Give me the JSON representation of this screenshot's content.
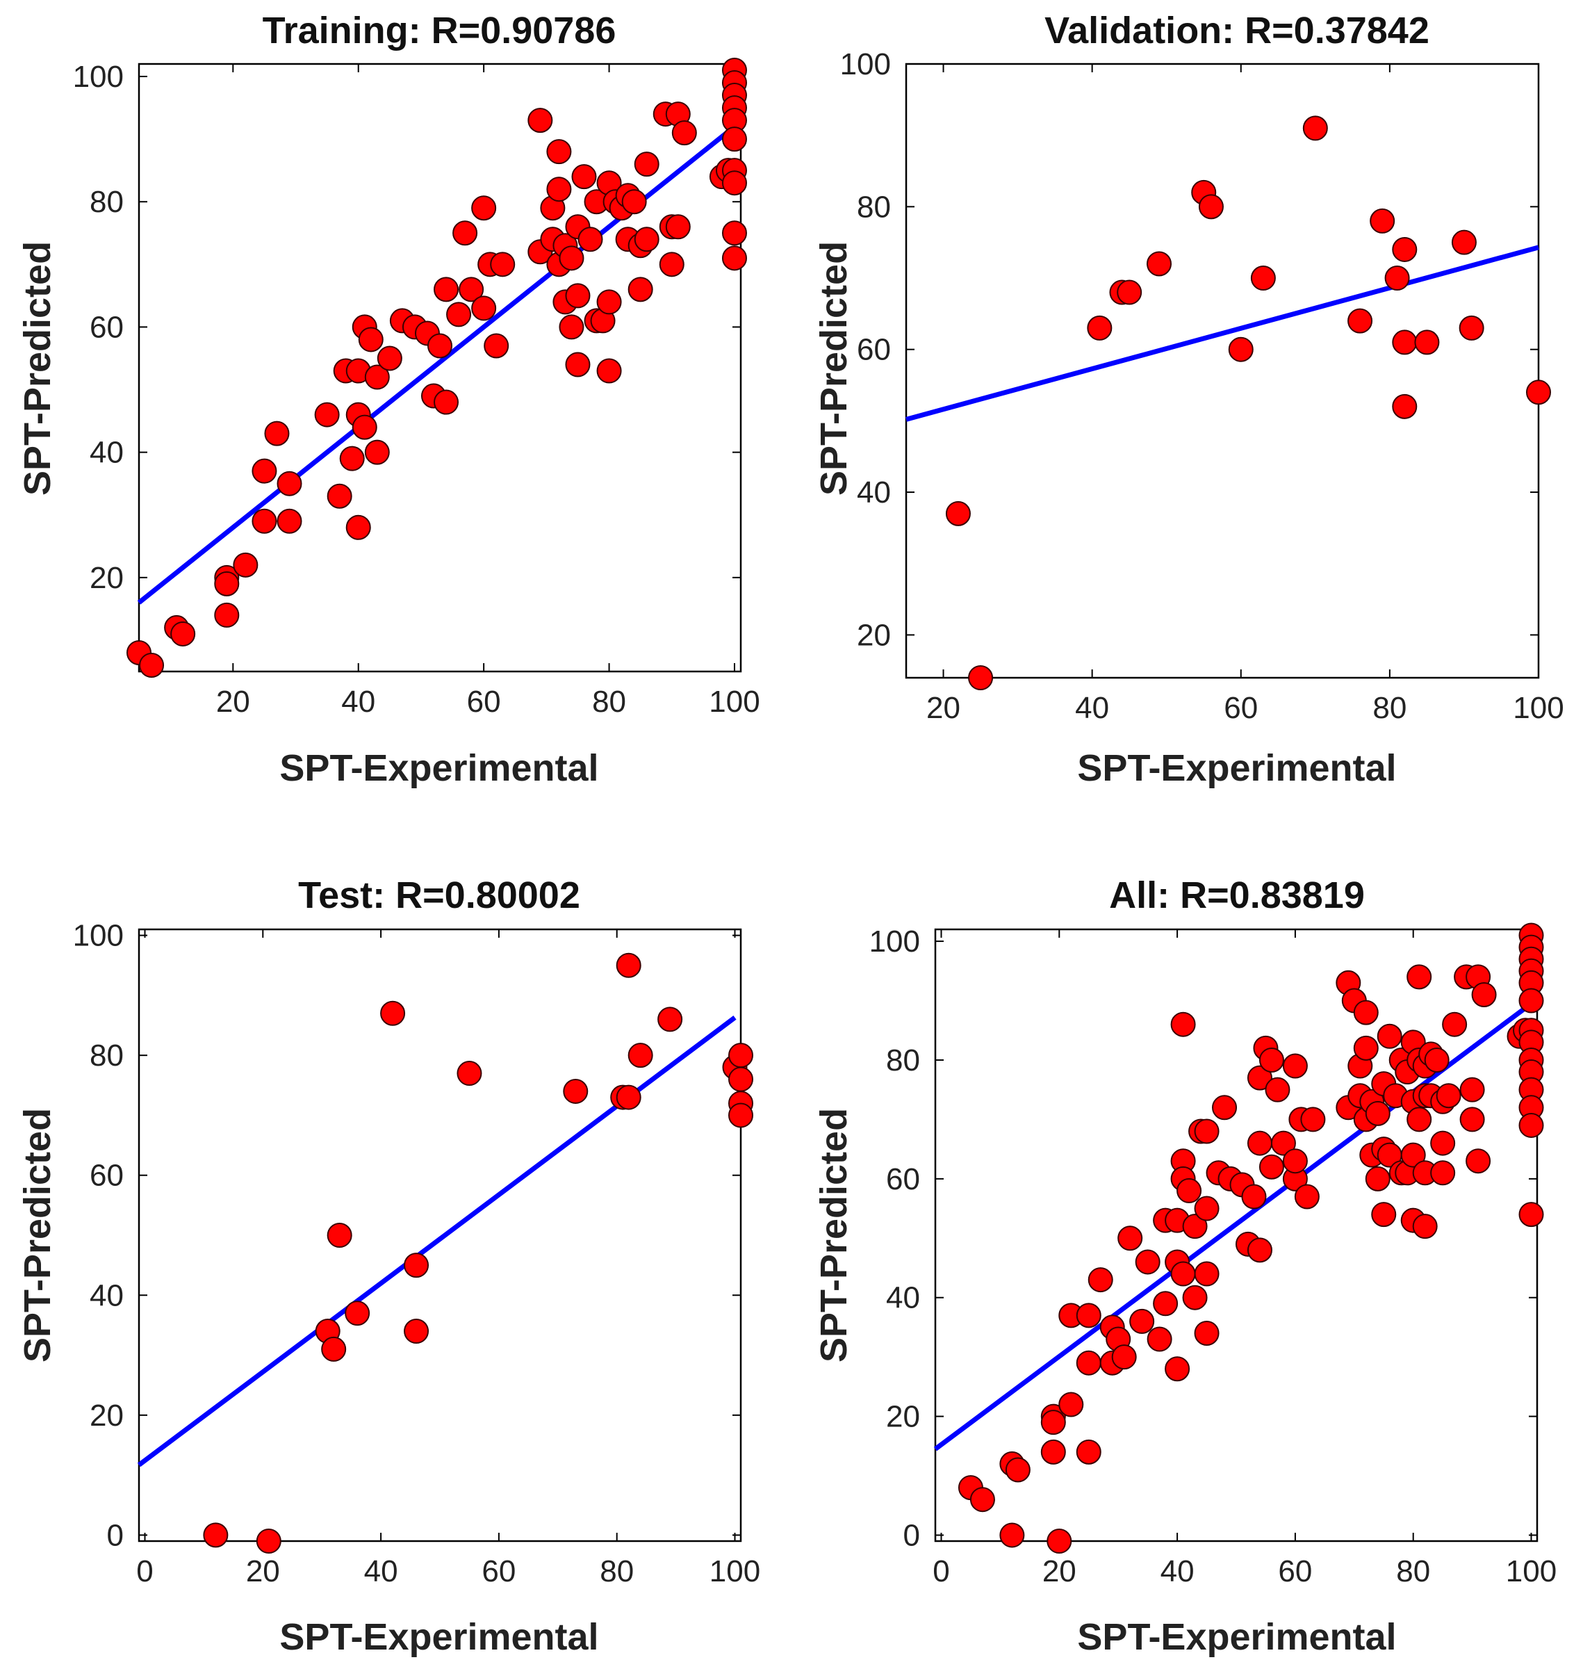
{
  "figure": {
    "colors": {
      "marker_fill": "#ff0000",
      "marker_edge": "#3a0000",
      "fit_line": "#0000ff",
      "axes": "#000000"
    }
  },
  "chart_data": [
    {
      "type": "scatter",
      "title": "Training: R=0.90786",
      "xlabel": "SPT-Experimental",
      "ylabel": "SPT-Predicted",
      "xlim": [
        5,
        101
      ],
      "ylim": [
        5,
        102
      ],
      "xticks": [
        20,
        40,
        60,
        80,
        100
      ],
      "yticks": [
        20,
        40,
        60,
        80,
        100
      ],
      "xtick_labels": [
        "20",
        "40",
        "60",
        "80",
        "100"
      ],
      "ytick_labels": [
        "20",
        "40",
        "60",
        "80",
        "100"
      ],
      "fit_line": {
        "x": [
          5,
          100
        ],
        "y": [
          16,
          92
        ]
      },
      "points": [
        [
          5,
          8
        ],
        [
          7,
          6
        ],
        [
          11,
          12
        ],
        [
          12,
          11
        ],
        [
          19,
          20
        ],
        [
          19,
          19
        ],
        [
          19,
          14
        ],
        [
          22,
          22
        ],
        [
          25,
          37
        ],
        [
          25,
          29
        ],
        [
          27,
          43
        ],
        [
          29,
          35
        ],
        [
          29,
          29
        ],
        [
          35,
          46
        ],
        [
          37,
          33
        ],
        [
          38,
          53
        ],
        [
          39,
          39
        ],
        [
          40,
          53
        ],
        [
          40,
          28
        ],
        [
          40,
          46
        ],
        [
          41,
          60
        ],
        [
          41,
          44
        ],
        [
          42,
          58
        ],
        [
          43,
          52
        ],
        [
          43,
          40
        ],
        [
          45,
          55
        ],
        [
          47,
          61
        ],
        [
          49,
          60
        ],
        [
          51,
          59
        ],
        [
          53,
          57
        ],
        [
          52,
          49
        ],
        [
          54,
          48
        ],
        [
          54,
          66
        ],
        [
          56,
          62
        ],
        [
          57,
          75
        ],
        [
          58,
          66
        ],
        [
          60,
          79
        ],
        [
          61,
          70
        ],
        [
          60,
          63
        ],
        [
          62,
          57
        ],
        [
          63,
          70
        ],
        [
          69,
          93
        ],
        [
          69,
          72
        ],
        [
          71,
          79
        ],
        [
          71,
          74
        ],
        [
          72,
          88
        ],
        [
          72,
          82
        ],
        [
          72,
          70
        ],
        [
          73,
          73
        ],
        [
          73,
          64
        ],
        [
          74,
          71
        ],
        [
          74,
          60
        ],
        [
          75,
          76
        ],
        [
          75,
          65
        ],
        [
          75,
          54
        ],
        [
          76,
          84
        ],
        [
          77,
          74
        ],
        [
          78,
          80
        ],
        [
          78,
          61
        ],
        [
          79,
          61
        ],
        [
          80,
          83
        ],
        [
          80,
          64
        ],
        [
          80,
          53
        ],
        [
          81,
          80
        ],
        [
          82,
          79
        ],
        [
          83,
          81
        ],
        [
          83,
          74
        ],
        [
          84,
          80
        ],
        [
          85,
          73
        ],
        [
          85,
          66
        ],
        [
          86,
          74
        ],
        [
          86,
          86
        ],
        [
          89,
          94
        ],
        [
          90,
          70
        ],
        [
          90,
          76
        ],
        [
          91,
          94
        ],
        [
          91,
          76
        ],
        [
          92,
          91
        ],
        [
          98,
          84
        ],
        [
          99,
          85
        ],
        [
          100,
          101
        ],
        [
          100,
          99
        ],
        [
          100,
          97
        ],
        [
          100,
          95
        ],
        [
          100,
          93
        ],
        [
          100,
          90
        ],
        [
          100,
          85
        ],
        [
          100,
          83
        ],
        [
          100,
          75
        ],
        [
          100,
          71
        ]
      ]
    },
    {
      "type": "scatter",
      "title": "Validation: R=0.37842",
      "xlabel": "SPT-Experimental",
      "ylabel": "SPT-Predicted",
      "xlim": [
        15,
        100
      ],
      "ylim": [
        14,
        100
      ],
      "xticks": [
        20,
        40,
        60,
        80,
        100
      ],
      "yticks": [
        20,
        40,
        60,
        80,
        100
      ],
      "xtick_labels": [
        "20",
        "40",
        "60",
        "80",
        "100"
      ],
      "ytick_labels": [
        "20",
        "40",
        "60",
        "80",
        "100"
      ],
      "fit_line": {
        "x": [
          15,
          100
        ],
        "y": [
          50.2,
          74.3
        ]
      },
      "points": [
        [
          22,
          37
        ],
        [
          25,
          14
        ],
        [
          41,
          63
        ],
        [
          44,
          68
        ],
        [
          45,
          68
        ],
        [
          49,
          72
        ],
        [
          55,
          82
        ],
        [
          56,
          80
        ],
        [
          60,
          60
        ],
        [
          63,
          70
        ],
        [
          70,
          91
        ],
        [
          76,
          64
        ],
        [
          79,
          78
        ],
        [
          81,
          70
        ],
        [
          82,
          74
        ],
        [
          82,
          61
        ],
        [
          82,
          52
        ],
        [
          85,
          61
        ],
        [
          90,
          75
        ],
        [
          91,
          63
        ],
        [
          100,
          54
        ]
      ]
    },
    {
      "type": "scatter",
      "title": "Test: R=0.80002",
      "xlabel": "SPT-Experimental",
      "ylabel": "SPT-Predicted",
      "xlim": [
        -1,
        101
      ],
      "ylim": [
        -1,
        101
      ],
      "xticks": [
        0,
        20,
        40,
        60,
        80,
        100
      ],
      "yticks": [
        0,
        20,
        40,
        60,
        80,
        100
      ],
      "xtick_labels": [
        "0",
        "20",
        "40",
        "60",
        "80",
        "100"
      ],
      "ytick_labels": [
        "0",
        "20",
        "40",
        "60",
        "80",
        "100"
      ],
      "fit_line": {
        "x": [
          -1,
          100
        ],
        "y": [
          11.7,
          86.3
        ]
      },
      "points": [
        [
          12,
          0
        ],
        [
          21,
          -1
        ],
        [
          31,
          34
        ],
        [
          32,
          31
        ],
        [
          33,
          50
        ],
        [
          36,
          37
        ],
        [
          42,
          87
        ],
        [
          46,
          45
        ],
        [
          46,
          34
        ],
        [
          55,
          77
        ],
        [
          73,
          74
        ],
        [
          81,
          73
        ],
        [
          82,
          73
        ],
        [
          82,
          95
        ],
        [
          84,
          80
        ],
        [
          89,
          86
        ],
        [
          100,
          78
        ],
        [
          101,
          80
        ],
        [
          101,
          76
        ],
        [
          101,
          72
        ],
        [
          101,
          70
        ]
      ]
    },
    {
      "type": "scatter",
      "title": "All: R=0.83819",
      "xlabel": "SPT-Experimental",
      "ylabel": "SPT-Predicted",
      "xlim": [
        -1,
        101
      ],
      "ylim": [
        -1,
        102
      ],
      "xticks": [
        0,
        20,
        40,
        60,
        80,
        100
      ],
      "yticks": [
        0,
        20,
        40,
        60,
        80,
        100
      ],
      "xtick_labels": [
        "0",
        "20",
        "40",
        "60",
        "80",
        "100"
      ],
      "ytick_labels": [
        "0",
        "20",
        "40",
        "60",
        "80",
        "100"
      ],
      "fit_line": {
        "x": [
          -1,
          100
        ],
        "y": [
          14.5,
          89.5
        ]
      },
      "points": [
        [
          5,
          8
        ],
        [
          7,
          6
        ],
        [
          12,
          0
        ],
        [
          12,
          12
        ],
        [
          13,
          11
        ],
        [
          19,
          20
        ],
        [
          19,
          19
        ],
        [
          19,
          14
        ],
        [
          20,
          -1
        ],
        [
          22,
          22
        ],
        [
          22,
          37
        ],
        [
          25,
          37
        ],
        [
          25,
          29
        ],
        [
          25,
          14
        ],
        [
          27,
          43
        ],
        [
          29,
          35
        ],
        [
          29,
          29
        ],
        [
          30,
          33
        ],
        [
          31,
          30
        ],
        [
          32,
          50
        ],
        [
          34,
          36
        ],
        [
          35,
          46
        ],
        [
          37,
          33
        ],
        [
          38,
          53
        ],
        [
          38,
          39
        ],
        [
          40,
          53
        ],
        [
          40,
          28
        ],
        [
          40,
          46
        ],
        [
          41,
          86
        ],
        [
          41,
          63
        ],
        [
          41,
          60
        ],
        [
          41,
          44
        ],
        [
          42,
          58
        ],
        [
          43,
          52
        ],
        [
          43,
          40
        ],
        [
          44,
          68
        ],
        [
          45,
          68
        ],
        [
          45,
          55
        ],
        [
          45,
          44
        ],
        [
          45,
          34
        ],
        [
          47,
          61
        ],
        [
          48,
          72
        ],
        [
          49,
          60
        ],
        [
          51,
          59
        ],
        [
          53,
          57
        ],
        [
          52,
          49
        ],
        [
          54,
          48
        ],
        [
          54,
          66
        ],
        [
          54,
          77
        ],
        [
          55,
          82
        ],
        [
          56,
          80
        ],
        [
          56,
          62
        ],
        [
          57,
          75
        ],
        [
          58,
          66
        ],
        [
          60,
          79
        ],
        [
          60,
          60
        ],
        [
          61,
          70
        ],
        [
          60,
          63
        ],
        [
          62,
          57
        ],
        [
          63,
          70
        ],
        [
          69,
          93
        ],
        [
          69,
          72
        ],
        [
          70,
          90
        ],
        [
          71,
          79
        ],
        [
          71,
          74
        ],
        [
          72,
          88
        ],
        [
          72,
          82
        ],
        [
          72,
          70
        ],
        [
          73,
          73
        ],
        [
          73,
          64
        ],
        [
          74,
          71
        ],
        [
          74,
          60
        ],
        [
          75,
          76
        ],
        [
          75,
          65
        ],
        [
          75,
          54
        ],
        [
          76,
          84
        ],
        [
          76,
          64
        ],
        [
          77,
          74
        ],
        [
          78,
          80
        ],
        [
          78,
          61
        ],
        [
          79,
          61
        ],
        [
          79,
          78
        ],
        [
          80,
          83
        ],
        [
          80,
          73
        ],
        [
          80,
          64
        ],
        [
          80,
          53
        ],
        [
          81,
          80
        ],
        [
          81,
          70
        ],
        [
          82,
          79
        ],
        [
          82,
          74
        ],
        [
          82,
          61
        ],
        [
          82,
          52
        ],
        [
          81,
          94
        ],
        [
          83,
          81
        ],
        [
          83,
          74
        ],
        [
          84,
          80
        ],
        [
          85,
          73
        ],
        [
          85,
          66
        ],
        [
          85,
          61
        ],
        [
          86,
          74
        ],
        [
          87,
          86
        ],
        [
          89,
          94
        ],
        [
          90,
          70
        ],
        [
          90,
          75
        ],
        [
          91,
          94
        ],
        [
          91,
          63
        ],
        [
          92,
          91
        ],
        [
          98,
          84
        ],
        [
          99,
          85
        ],
        [
          100,
          101
        ],
        [
          100,
          99
        ],
        [
          100,
          97
        ],
        [
          100,
          95
        ],
        [
          100,
          93
        ],
        [
          100,
          90
        ],
        [
          100,
          85
        ],
        [
          100,
          83
        ],
        [
          100,
          80
        ],
        [
          100,
          78
        ],
        [
          100,
          75
        ],
        [
          100,
          72
        ],
        [
          100,
          69
        ],
        [
          100,
          54
        ]
      ]
    }
  ]
}
